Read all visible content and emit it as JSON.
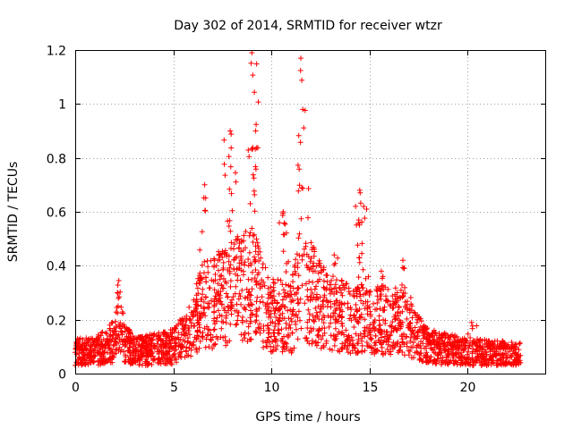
{
  "chart_data": {
    "type": "scatter",
    "title": "Day 302 of 2014, SRMTID for receiver wtzr",
    "xlabel": "GPS time / hours",
    "ylabel": "SRMTID / TECUs",
    "xlim": [
      0,
      24
    ],
    "ylim": [
      0,
      1.2
    ],
    "xticks": [
      0,
      5,
      10,
      15,
      20
    ],
    "xtick_labels": [
      "0",
      "5",
      "10",
      "15",
      "20"
    ],
    "yticks": [
      0,
      0.2,
      0.4,
      0.6,
      0.8,
      1.0,
      1.2
    ],
    "ytick_labels": [
      "0",
      "0.2",
      "0.4",
      "0.6",
      "0.8",
      "1",
      "1.2"
    ],
    "grid": true,
    "marker": "+",
    "marker_color": "#ff0000",
    "series": [
      {
        "name": "SRMTID",
        "x_range": [
          0,
          22.7
        ],
        "typical_envelope": [
          {
            "x": 0.0,
            "y": 0.08
          },
          {
            "x": 1.0,
            "y": 0.08
          },
          {
            "x": 2.0,
            "y": 0.12
          },
          {
            "x": 2.2,
            "y": 0.22
          },
          {
            "x": 2.5,
            "y": 0.12
          },
          {
            "x": 3.0,
            "y": 0.08
          },
          {
            "x": 4.0,
            "y": 0.09
          },
          {
            "x": 5.0,
            "y": 0.1
          },
          {
            "x": 5.8,
            "y": 0.15
          },
          {
            "x": 6.5,
            "y": 0.25
          },
          {
            "x": 7.5,
            "y": 0.28
          },
          {
            "x": 8.0,
            "y": 0.3
          },
          {
            "x": 9.0,
            "y": 0.33
          },
          {
            "x": 10.0,
            "y": 0.22
          },
          {
            "x": 11.0,
            "y": 0.2
          },
          {
            "x": 11.5,
            "y": 0.35
          },
          {
            "x": 12.5,
            "y": 0.25
          },
          {
            "x": 13.5,
            "y": 0.22
          },
          {
            "x": 14.5,
            "y": 0.2
          },
          {
            "x": 15.0,
            "y": 0.2
          },
          {
            "x": 16.0,
            "y": 0.2
          },
          {
            "x": 17.0,
            "y": 0.18
          },
          {
            "x": 18.0,
            "y": 0.1
          },
          {
            "x": 20.0,
            "y": 0.08
          },
          {
            "x": 22.7,
            "y": 0.07
          }
        ],
        "peaks": [
          {
            "x": 2.15,
            "y": 0.3
          },
          {
            "x": 6.6,
            "y": 0.7
          },
          {
            "x": 7.9,
            "y": 0.9
          },
          {
            "x": 8.3,
            "y": 0.5
          },
          {
            "x": 9.0,
            "y": 1.19
          },
          {
            "x": 9.2,
            "y": 0.9
          },
          {
            "x": 10.6,
            "y": 0.6
          },
          {
            "x": 11.5,
            "y": 1.17
          },
          {
            "x": 11.6,
            "y": 0.98
          },
          {
            "x": 13.2,
            "y": 0.44
          },
          {
            "x": 14.5,
            "y": 0.68
          },
          {
            "x": 14.7,
            "y": 0.62
          },
          {
            "x": 15.6,
            "y": 0.38
          },
          {
            "x": 16.7,
            "y": 0.42
          },
          {
            "x": 20.2,
            "y": 0.19
          }
        ]
      }
    ]
  }
}
